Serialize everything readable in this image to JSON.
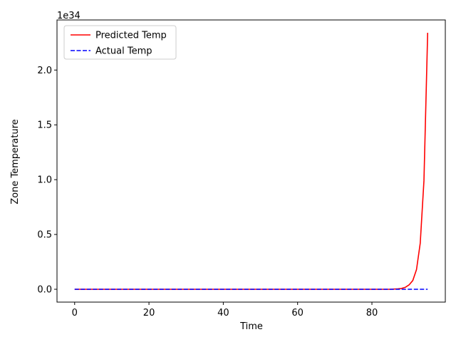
{
  "chart_data": {
    "type": "line",
    "title": "",
    "xlabel": "Time",
    "ylabel": "Zone Temperature",
    "y_offset_label": "1e34",
    "xlim": [
      -4.75,
      99.75
    ],
    "ylim": [
      -0.117,
      2.457
    ],
    "x_ticks": [
      0,
      20,
      40,
      60,
      80
    ],
    "y_ticks": [
      0.0,
      0.5,
      1.0,
      1.5,
      2.0
    ],
    "x_tick_labels": [
      "0",
      "20",
      "40",
      "60",
      "80"
    ],
    "y_tick_labels": [
      "0.0",
      "0.5",
      "1.0",
      "1.5",
      "2.0"
    ],
    "grid": false,
    "legend_position": "top-left",
    "series": [
      {
        "name": "Predicted Temp",
        "color": "#ff0000",
        "style": "solid",
        "x": [
          0,
          10,
          20,
          30,
          40,
          50,
          60,
          70,
          80,
          85,
          86,
          87,
          88,
          89,
          90,
          91,
          92,
          93,
          94,
          95
        ],
        "y": [
          0,
          0,
          0,
          0,
          0,
          0,
          0,
          0,
          0,
          0,
          0.002,
          0.004,
          0.008,
          0.018,
          0.04,
          0.08,
          0.18,
          0.42,
          0.99,
          2.34
        ]
      },
      {
        "name": "Actual Temp",
        "color": "#0000ff",
        "style": "dashed",
        "x": [
          0,
          95
        ],
        "y": [
          0,
          0
        ]
      }
    ]
  }
}
